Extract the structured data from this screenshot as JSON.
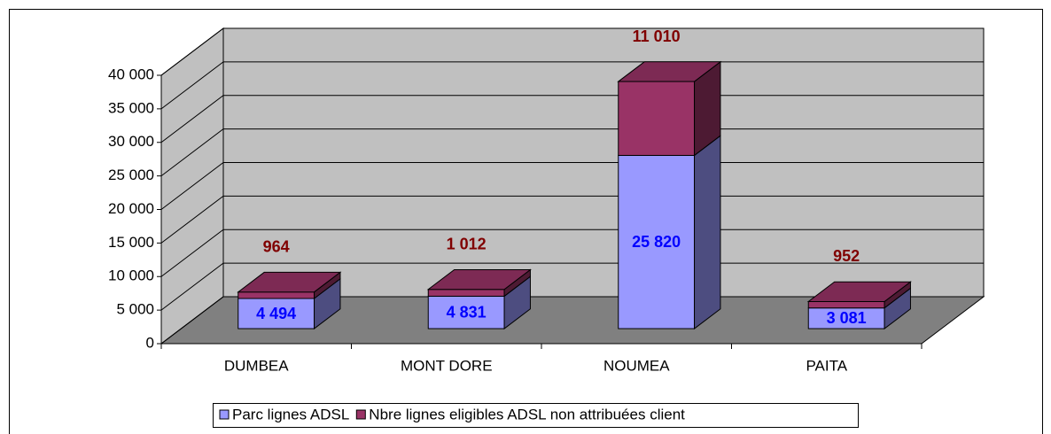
{
  "chart_data": {
    "type": "bar3d_stacked",
    "categories": [
      "DUMBEA",
      "MONT DORE",
      "NOUMEA",
      "PAITA"
    ],
    "series": [
      {
        "name": "Parc lignes ADSL",
        "color": "#9999ff",
        "values": [
          4494,
          4831,
          25820,
          3081
        ],
        "value_labels": [
          "4 494",
          "4 831",
          "25 820",
          "3 081"
        ],
        "label_color": "#0000ff"
      },
      {
        "name": "Nbre lignes eligibles ADSL non attribuées client",
        "color": "#993366",
        "values": [
          964,
          1012,
          11010,
          952
        ],
        "value_labels": [
          "964",
          "1 012",
          "11 010",
          "952"
        ],
        "label_color": "#800000"
      }
    ],
    "ylim": [
      0,
      40000
    ],
    "yticks": [
      {
        "value": 0,
        "label": "0"
      },
      {
        "value": 5000,
        "label": "5 000"
      },
      {
        "value": 10000,
        "label": "10 000"
      },
      {
        "value": 15000,
        "label": "15 000"
      },
      {
        "value": 20000,
        "label": "20 000"
      },
      {
        "value": 25000,
        "label": "25 000"
      },
      {
        "value": 30000,
        "label": "30 000"
      },
      {
        "value": 35000,
        "label": "35 000"
      },
      {
        "value": 40000,
        "label": "40 000"
      }
    ],
    "grid": true,
    "stacked": true,
    "legend": "bottom"
  }
}
